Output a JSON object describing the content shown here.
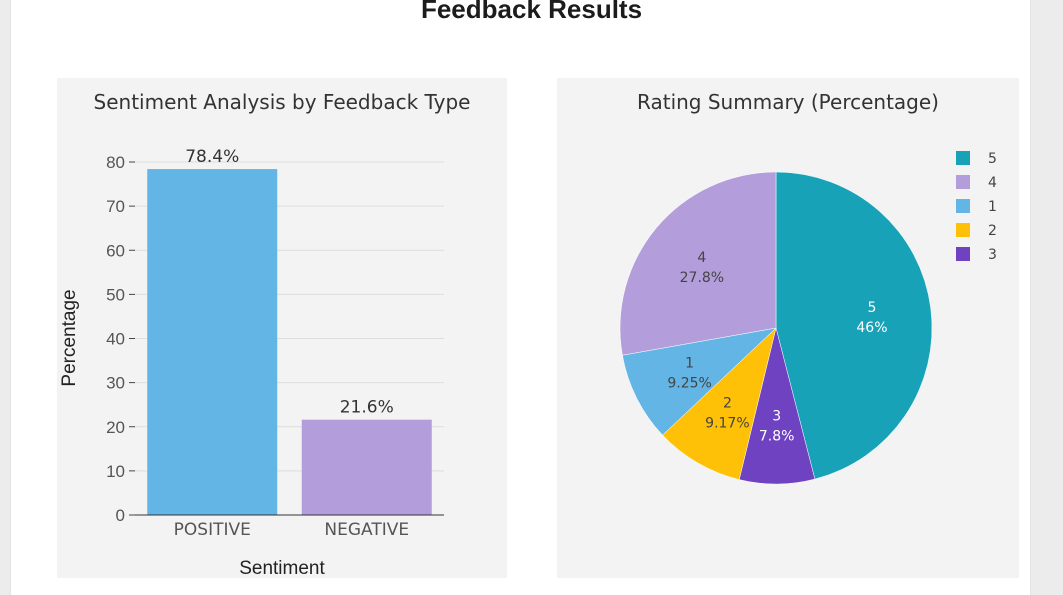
{
  "page": {
    "title": "Feedback Results"
  },
  "chart_data": [
    {
      "type": "bar",
      "title": "Sentiment Analysis by Feedback Type",
      "xlabel": "Sentiment",
      "ylabel": "Percentage",
      "categories": [
        "POSITIVE",
        "NEGATIVE"
      ],
      "values": [
        78.4,
        21.6
      ],
      "data_labels": [
        "78.4%",
        "21.6%"
      ],
      "colors": [
        "#63b5e5",
        "#b39ddb"
      ],
      "ylim": [
        0,
        80
      ],
      "yticks": [
        0,
        10,
        20,
        30,
        40,
        50,
        60,
        70,
        80
      ],
      "grid": true
    },
    {
      "type": "pie",
      "title": "Rating Summary (Percentage)",
      "labels": [
        "5",
        "3",
        "2",
        "1",
        "4"
      ],
      "values": [
        46,
        7.8,
        9.17,
        9.25,
        27.8
      ],
      "value_labels": [
        "46%",
        "7.8%",
        "9.17%",
        "9.25%",
        "27.8%"
      ],
      "colors": [
        "#17a2b8",
        "#6f42c1",
        "#ffc107",
        "#63b5e5",
        "#b39ddb"
      ],
      "legend": {
        "position": "top-right",
        "order": [
          "5",
          "4",
          "1",
          "2",
          "3"
        ]
      }
    }
  ]
}
